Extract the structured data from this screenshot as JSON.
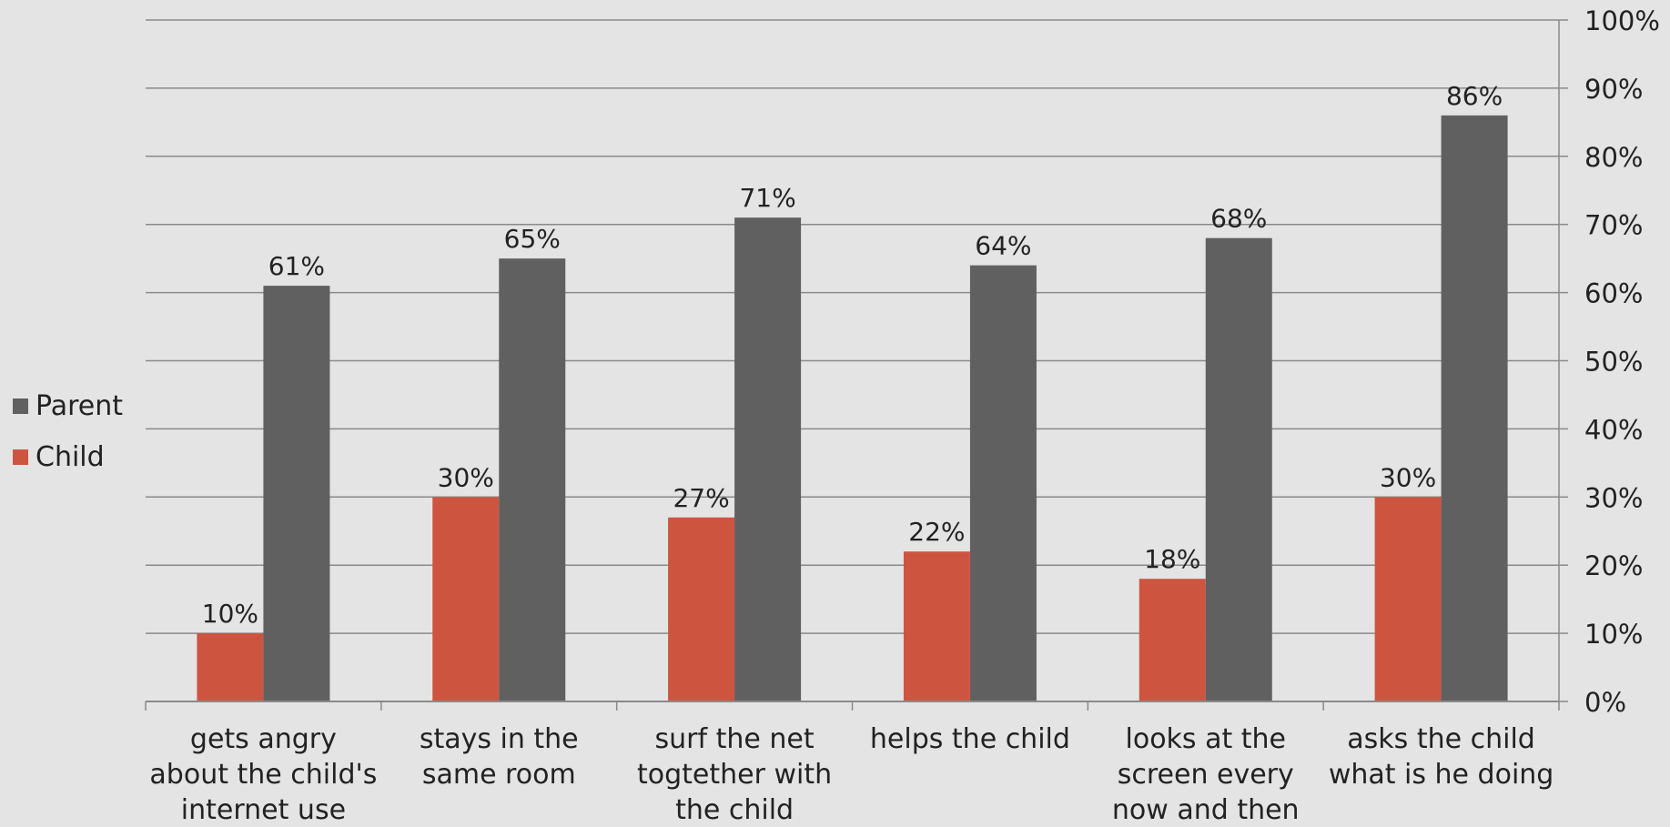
{
  "chart_data": {
    "type": "bar",
    "title": "",
    "xlabel": "",
    "ylabel": "",
    "categories": [
      [
        "gets angry",
        "about the child's",
        "internet use"
      ],
      [
        "stays in the",
        "same room"
      ],
      [
        "surf the net",
        "togtether with",
        "the child"
      ],
      [
        "helps the child"
      ],
      [
        "looks at the",
        "screen every",
        "now and then"
      ],
      [
        "asks the child",
        "what is he doing"
      ]
    ],
    "series": [
      {
        "name": "Child",
        "color": "#cd5540",
        "values": [
          10,
          30,
          27,
          22,
          18,
          30
        ],
        "labels": [
          "10%",
          "30%",
          "27%",
          "22%",
          "18%",
          "30%"
        ]
      },
      {
        "name": "Parent",
        "color": "#606060",
        "values": [
          61,
          65,
          71,
          64,
          68,
          86
        ],
        "labels": [
          "61%",
          "65%",
          "71%",
          "64%",
          "68%",
          "86%"
        ]
      }
    ],
    "ylim": [
      0,
      100
    ],
    "y_ticks": [
      "0%",
      "10%",
      "20%",
      "30%",
      "40%",
      "50%",
      "60%",
      "70%",
      "80%",
      "90%",
      "100%"
    ],
    "y_axis_side": "right",
    "grid": true,
    "legend_placement": "left",
    "legend_order": [
      "Parent",
      "Child"
    ]
  }
}
